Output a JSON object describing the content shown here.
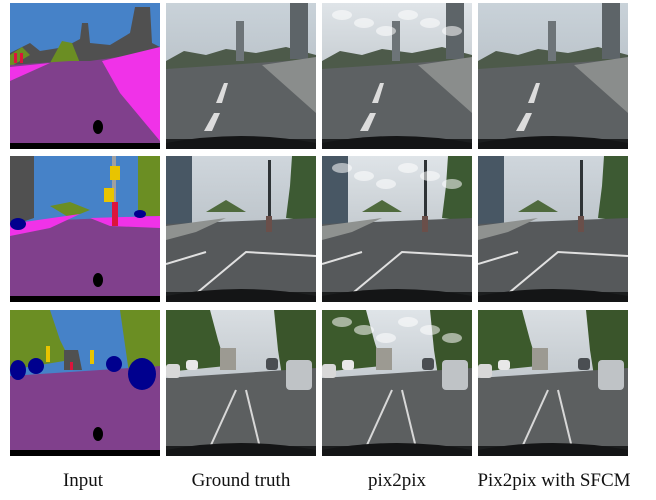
{
  "figure": {
    "columns": [
      {
        "caption": "Input"
      },
      {
        "caption": "Ground truth"
      },
      {
        "caption": "pix2pix"
      },
      {
        "caption": "Pix2pix with SFCM"
      }
    ],
    "rows": [
      {
        "scene": "road-skyline"
      },
      {
        "scene": "intersection-pole"
      },
      {
        "scene": "tree-lined-street-cars"
      }
    ]
  },
  "colors": {
    "label_sky": "#4682c8",
    "label_road": "#80408c",
    "label_sidewalk": "#f032e8",
    "label_vegetation": "#6b8e23",
    "label_building": "#505050",
    "label_car": "#00008e",
    "label_sign": "#e8c400",
    "label_person": "#dc143c",
    "label_hood": "#000000"
  }
}
